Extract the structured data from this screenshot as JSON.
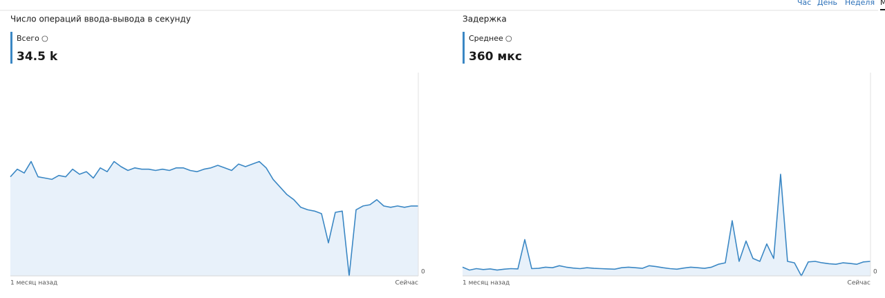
{
  "tabs": [
    "Час",
    "День",
    "Неделя",
    "М"
  ],
  "chart_data": [
    {
      "type": "area",
      "title": "Число операций ввода-вывода в секунду",
      "stat_label": "Всего",
      "stat_value": "34.5 k",
      "x_labels": [
        "1 месяц назад",
        "Сейчас"
      ],
      "color": "#3a87c4",
      "fill": "#e8f1fa",
      "ylim": [
        0,
        80000
      ],
      "yticks": [
        0
      ],
      "values": [
        39000,
        42000,
        40500,
        45000,
        39000,
        38500,
        38000,
        39500,
        39000,
        42000,
        40000,
        41000,
        38500,
        42500,
        41000,
        45000,
        43000,
        41500,
        42500,
        42000,
        42000,
        41500,
        42000,
        41500,
        42500,
        42500,
        41500,
        41000,
        42000,
        42500,
        43500,
        42500,
        41500,
        44000,
        43000,
        44000,
        45000,
        42500,
        38000,
        35000,
        32000,
        30000,
        27000,
        26000,
        25500,
        24500,
        13000,
        25000,
        25500,
        0,
        26000,
        27500,
        28000,
        30000,
        27500,
        27000,
        27500,
        27000,
        27500,
        27500
      ]
    },
    {
      "type": "area",
      "title": "Задержка",
      "stat_label": "Среднее",
      "stat_value": "360 мкс",
      "x_labels": [
        "1 месяц назад",
        "Сейчас"
      ],
      "color": "#3a87c4",
      "fill": "#e8f1fa",
      "ylim": [
        0,
        7000
      ],
      "yticks": [
        0
      ],
      "values": [
        300,
        200,
        250,
        220,
        240,
        200,
        230,
        250,
        240,
        1250,
        250,
        260,
        300,
        280,
        350,
        300,
        270,
        250,
        280,
        260,
        250,
        240,
        230,
        280,
        300,
        280,
        260,
        350,
        320,
        280,
        250,
        230,
        270,
        300,
        280,
        260,
        300,
        400,
        450,
        1900,
        500,
        1200,
        600,
        500,
        1100,
        600,
        3500,
        500,
        450,
        0,
        480,
        500,
        450,
        420,
        400,
        450,
        430,
        400,
        480,
        500
      ]
    }
  ]
}
